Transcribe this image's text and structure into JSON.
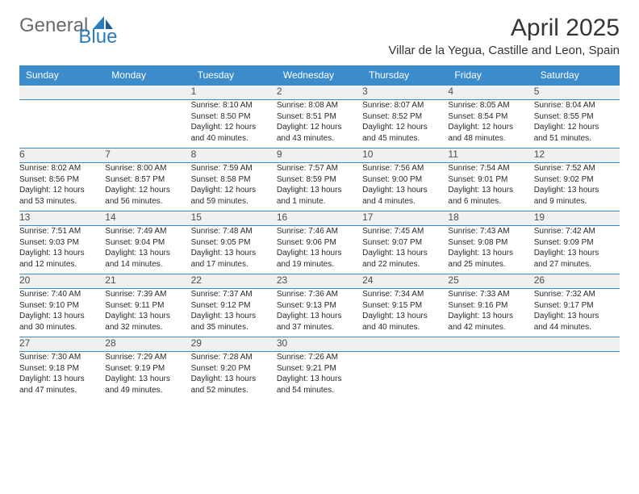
{
  "logo": {
    "part1": "General",
    "part2": "Blue"
  },
  "title": "April 2025",
  "location": "Villar de la Yegua, Castille and Leon, Spain",
  "colors": {
    "header_bg": "#3c8ccc",
    "header_text": "#ffffff",
    "daynum_bg": "#eef0f1",
    "border": "#3c8ccc",
    "logo_grey": "#6a6a6a",
    "logo_blue": "#2b7bbf"
  },
  "dayNames": [
    "Sunday",
    "Monday",
    "Tuesday",
    "Wednesday",
    "Thursday",
    "Friday",
    "Saturday"
  ],
  "weeks": [
    [
      null,
      null,
      {
        "n": "1",
        "sr": "Sunrise: 8:10 AM",
        "ss": "Sunset: 8:50 PM",
        "d1": "Daylight: 12 hours",
        "d2": "and 40 minutes."
      },
      {
        "n": "2",
        "sr": "Sunrise: 8:08 AM",
        "ss": "Sunset: 8:51 PM",
        "d1": "Daylight: 12 hours",
        "d2": "and 43 minutes."
      },
      {
        "n": "3",
        "sr": "Sunrise: 8:07 AM",
        "ss": "Sunset: 8:52 PM",
        "d1": "Daylight: 12 hours",
        "d2": "and 45 minutes."
      },
      {
        "n": "4",
        "sr": "Sunrise: 8:05 AM",
        "ss": "Sunset: 8:54 PM",
        "d1": "Daylight: 12 hours",
        "d2": "and 48 minutes."
      },
      {
        "n": "5",
        "sr": "Sunrise: 8:04 AM",
        "ss": "Sunset: 8:55 PM",
        "d1": "Daylight: 12 hours",
        "d2": "and 51 minutes."
      }
    ],
    [
      {
        "n": "6",
        "sr": "Sunrise: 8:02 AM",
        "ss": "Sunset: 8:56 PM",
        "d1": "Daylight: 12 hours",
        "d2": "and 53 minutes."
      },
      {
        "n": "7",
        "sr": "Sunrise: 8:00 AM",
        "ss": "Sunset: 8:57 PM",
        "d1": "Daylight: 12 hours",
        "d2": "and 56 minutes."
      },
      {
        "n": "8",
        "sr": "Sunrise: 7:59 AM",
        "ss": "Sunset: 8:58 PM",
        "d1": "Daylight: 12 hours",
        "d2": "and 59 minutes."
      },
      {
        "n": "9",
        "sr": "Sunrise: 7:57 AM",
        "ss": "Sunset: 8:59 PM",
        "d1": "Daylight: 13 hours",
        "d2": "and 1 minute."
      },
      {
        "n": "10",
        "sr": "Sunrise: 7:56 AM",
        "ss": "Sunset: 9:00 PM",
        "d1": "Daylight: 13 hours",
        "d2": "and 4 minutes."
      },
      {
        "n": "11",
        "sr": "Sunrise: 7:54 AM",
        "ss": "Sunset: 9:01 PM",
        "d1": "Daylight: 13 hours",
        "d2": "and 6 minutes."
      },
      {
        "n": "12",
        "sr": "Sunrise: 7:52 AM",
        "ss": "Sunset: 9:02 PM",
        "d1": "Daylight: 13 hours",
        "d2": "and 9 minutes."
      }
    ],
    [
      {
        "n": "13",
        "sr": "Sunrise: 7:51 AM",
        "ss": "Sunset: 9:03 PM",
        "d1": "Daylight: 13 hours",
        "d2": "and 12 minutes."
      },
      {
        "n": "14",
        "sr": "Sunrise: 7:49 AM",
        "ss": "Sunset: 9:04 PM",
        "d1": "Daylight: 13 hours",
        "d2": "and 14 minutes."
      },
      {
        "n": "15",
        "sr": "Sunrise: 7:48 AM",
        "ss": "Sunset: 9:05 PM",
        "d1": "Daylight: 13 hours",
        "d2": "and 17 minutes."
      },
      {
        "n": "16",
        "sr": "Sunrise: 7:46 AM",
        "ss": "Sunset: 9:06 PM",
        "d1": "Daylight: 13 hours",
        "d2": "and 19 minutes."
      },
      {
        "n": "17",
        "sr": "Sunrise: 7:45 AM",
        "ss": "Sunset: 9:07 PM",
        "d1": "Daylight: 13 hours",
        "d2": "and 22 minutes."
      },
      {
        "n": "18",
        "sr": "Sunrise: 7:43 AM",
        "ss": "Sunset: 9:08 PM",
        "d1": "Daylight: 13 hours",
        "d2": "and 25 minutes."
      },
      {
        "n": "19",
        "sr": "Sunrise: 7:42 AM",
        "ss": "Sunset: 9:09 PM",
        "d1": "Daylight: 13 hours",
        "d2": "and 27 minutes."
      }
    ],
    [
      {
        "n": "20",
        "sr": "Sunrise: 7:40 AM",
        "ss": "Sunset: 9:10 PM",
        "d1": "Daylight: 13 hours",
        "d2": "and 30 minutes."
      },
      {
        "n": "21",
        "sr": "Sunrise: 7:39 AM",
        "ss": "Sunset: 9:11 PM",
        "d1": "Daylight: 13 hours",
        "d2": "and 32 minutes."
      },
      {
        "n": "22",
        "sr": "Sunrise: 7:37 AM",
        "ss": "Sunset: 9:12 PM",
        "d1": "Daylight: 13 hours",
        "d2": "and 35 minutes."
      },
      {
        "n": "23",
        "sr": "Sunrise: 7:36 AM",
        "ss": "Sunset: 9:13 PM",
        "d1": "Daylight: 13 hours",
        "d2": "and 37 minutes."
      },
      {
        "n": "24",
        "sr": "Sunrise: 7:34 AM",
        "ss": "Sunset: 9:15 PM",
        "d1": "Daylight: 13 hours",
        "d2": "and 40 minutes."
      },
      {
        "n": "25",
        "sr": "Sunrise: 7:33 AM",
        "ss": "Sunset: 9:16 PM",
        "d1": "Daylight: 13 hours",
        "d2": "and 42 minutes."
      },
      {
        "n": "26",
        "sr": "Sunrise: 7:32 AM",
        "ss": "Sunset: 9:17 PM",
        "d1": "Daylight: 13 hours",
        "d2": "and 44 minutes."
      }
    ],
    [
      {
        "n": "27",
        "sr": "Sunrise: 7:30 AM",
        "ss": "Sunset: 9:18 PM",
        "d1": "Daylight: 13 hours",
        "d2": "and 47 minutes."
      },
      {
        "n": "28",
        "sr": "Sunrise: 7:29 AM",
        "ss": "Sunset: 9:19 PM",
        "d1": "Daylight: 13 hours",
        "d2": "and 49 minutes."
      },
      {
        "n": "29",
        "sr": "Sunrise: 7:28 AM",
        "ss": "Sunset: 9:20 PM",
        "d1": "Daylight: 13 hours",
        "d2": "and 52 minutes."
      },
      {
        "n": "30",
        "sr": "Sunrise: 7:26 AM",
        "ss": "Sunset: 9:21 PM",
        "d1": "Daylight: 13 hours",
        "d2": "and 54 minutes."
      },
      null,
      null,
      null
    ]
  ]
}
